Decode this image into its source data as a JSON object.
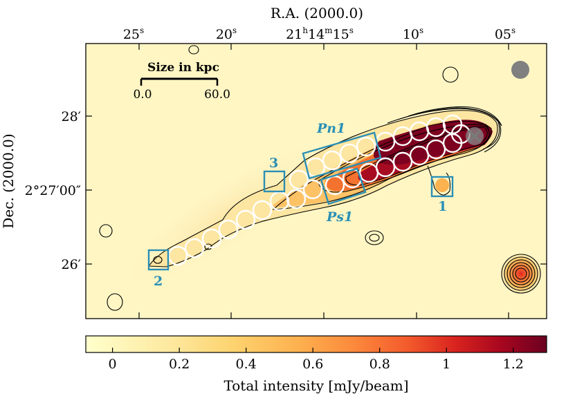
{
  "figure": {
    "top_axis_label": "R.A. (2000.0)",
    "left_axis_label": "Dec. (2000.0)",
    "top_ticks": [
      {
        "main": "25",
        "sup": "s"
      },
      {
        "main": "20",
        "sup": "s"
      },
      {
        "main": "21",
        "sup": "h",
        "main2": "14",
        "sup2": "m",
        "main3": "15",
        "sup3": "s"
      },
      {
        "main": "10",
        "sup": "s"
      },
      {
        "main": "05",
        "sup": "s"
      }
    ],
    "left_ticks": [
      "28′",
      "2°27′00″",
      "26′"
    ],
    "scalebar": {
      "title": "Size in kpc",
      "start": "0.0",
      "end": "60.0"
    },
    "regions": [
      {
        "label": "Pn1"
      },
      {
        "label": "Ps1"
      },
      {
        "label": "1"
      },
      {
        "label": "2"
      },
      {
        "label": "3"
      }
    ],
    "colorbar": {
      "label": "Total intensity [mJy/beam]",
      "ticks": [
        "0",
        "0.2",
        "0.4",
        "0.6",
        "0.8",
        "1",
        "1.2"
      ],
      "range": [
        -0.08,
        1.3
      ],
      "colors": [
        "#ffffcc",
        "#fed976",
        "#feb24c",
        "#fd8d3c",
        "#f03b20",
        "#bd0026",
        "#800026"
      ]
    }
  }
}
